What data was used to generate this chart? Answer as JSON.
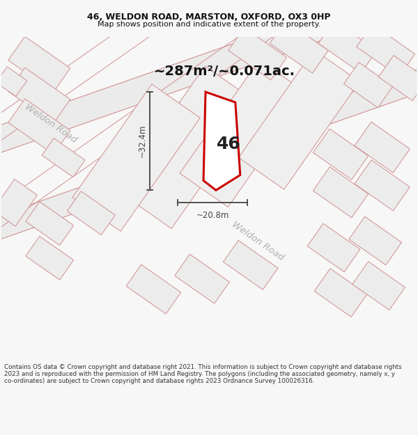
{
  "title_line1": "46, WELDON ROAD, MARSTON, OXFORD, OX3 0HP",
  "title_line2": "Map shows position and indicative extent of the property.",
  "area_text": "~287m²/~0.071ac.",
  "label_46": "46",
  "dim_vertical": "~32.4m",
  "dim_horizontal": "~20.8m",
  "road_label1": "Weldon Road",
  "road_label2": "Weldon Road",
  "footer_text": "Contains OS data © Crown copyright and database right 2021. This information is subject to Crown copyright and database rights 2023 and is reproduced with the permission of HM Land Registry. The polygons (including the associated geometry, namely x, y co-ordinates) are subject to Crown copyright and database rights 2023 Ordnance Survey 100026316.",
  "bg_color": "#f7f7f7",
  "map_bg": "#ffffff",
  "parcel_fill": "#e8e8e8",
  "parcel_stroke": "#d09090",
  "property_stroke": "#cc0000",
  "dim_color": "#444444",
  "road_text_color": "#b0b0b0",
  "area_text_color": "#111111",
  "footer_color": "#333333"
}
